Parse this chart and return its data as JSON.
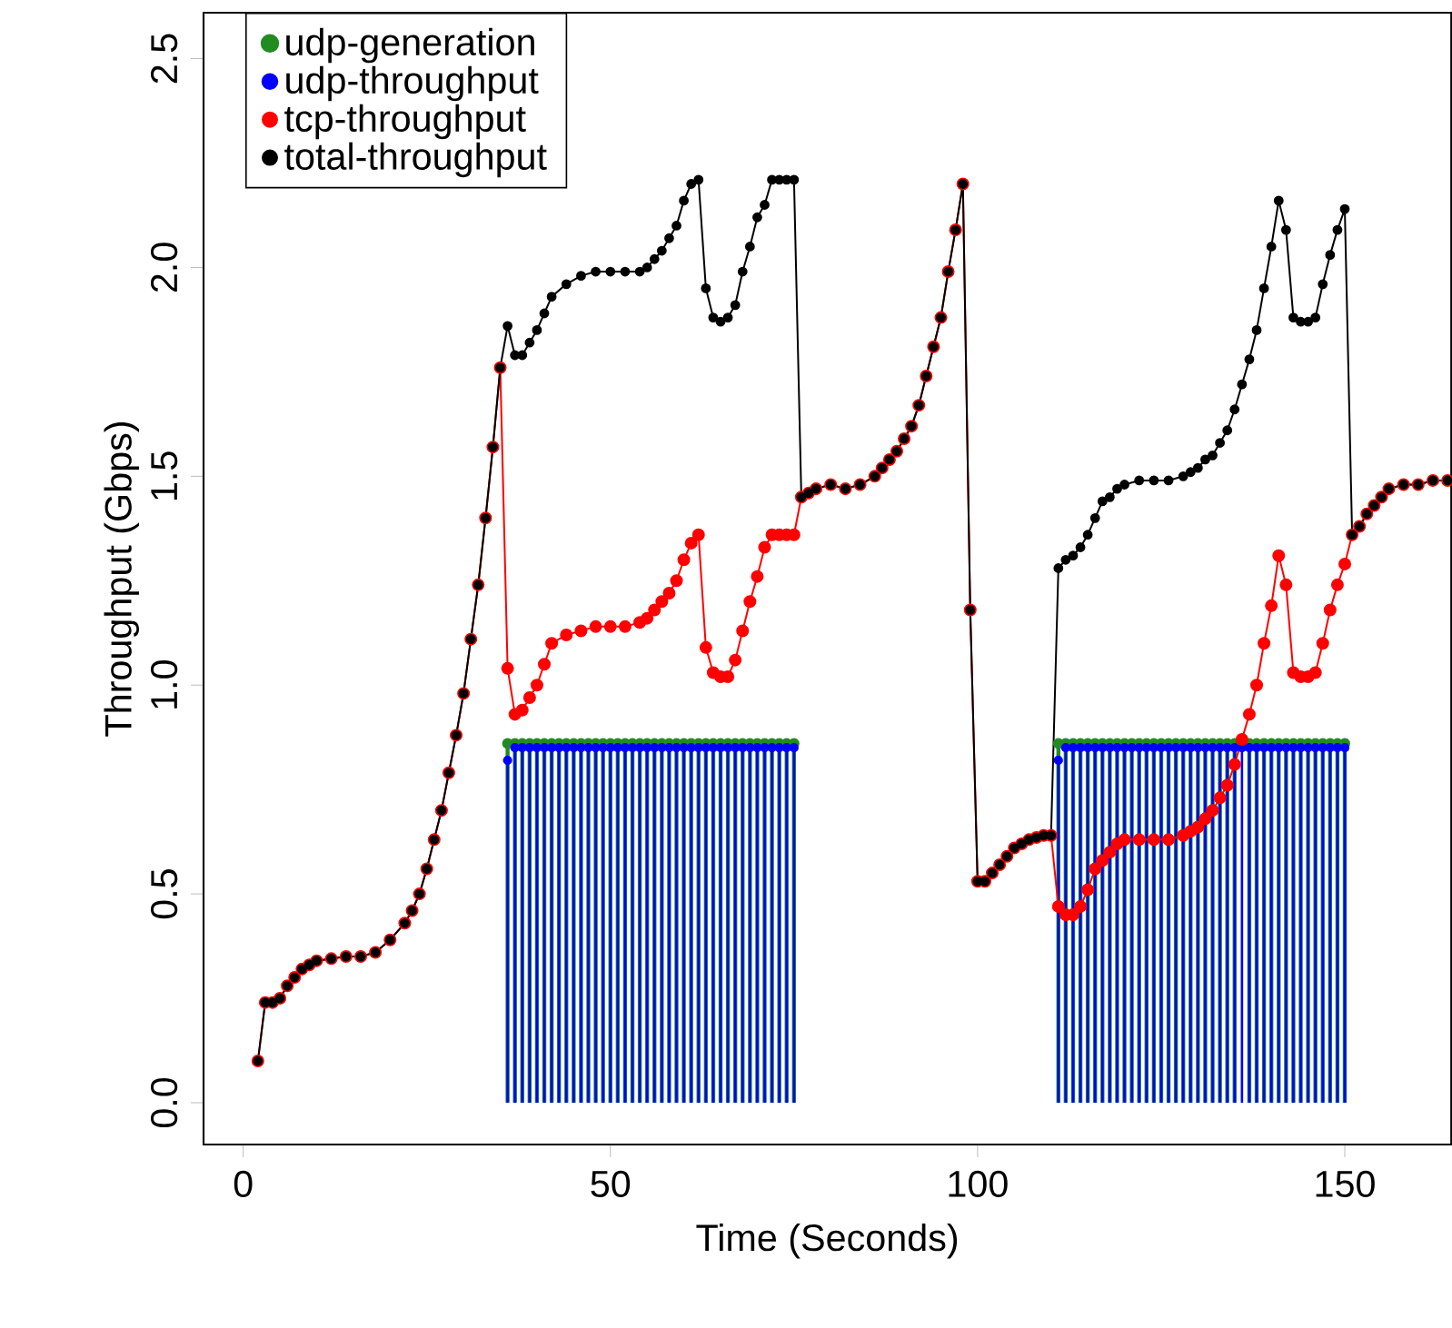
{
  "chart_data": {
    "type": "line",
    "xlabel": "Time (Seconds)",
    "ylabel": "Throughput (Gbps)",
    "xlim": [
      -5.4,
      164.5
    ],
    "ylim": [
      -0.1,
      2.61
    ],
    "xticks": [
      0,
      50,
      100,
      150
    ],
    "yticks": [
      {
        "value": 0,
        "label": "0.0"
      },
      0.5,
      {
        "value": 1,
        "label": "1.0"
      },
      1.5,
      {
        "value": 2,
        "label": "2.0"
      },
      2.5
    ],
    "legend": "top left",
    "marker": "circle",
    "grid": false,
    "series": [
      {
        "name": "udp-generation",
        "type": "lollipop",
        "color": "#228b22",
        "x": [
          36,
          37,
          38,
          39,
          40,
          41,
          42,
          43,
          44,
          45,
          46,
          47,
          48,
          49,
          50,
          51,
          52,
          53,
          54,
          55,
          56,
          57,
          58,
          59,
          60,
          61,
          62,
          63,
          64,
          65,
          66,
          67,
          68,
          69,
          70,
          71,
          72,
          73,
          74,
          75,
          111,
          112,
          113,
          114,
          115,
          116,
          117,
          118,
          119,
          120,
          121,
          122,
          123,
          124,
          125,
          126,
          127,
          128,
          129,
          130,
          131,
          132,
          133,
          134,
          135,
          136,
          137,
          138,
          139,
          140,
          141,
          142,
          143,
          144,
          145,
          146,
          147,
          148,
          149,
          150
        ],
        "values": [
          0.86,
          0.86,
          0.86,
          0.86,
          0.86,
          0.86,
          0.86,
          0.86,
          0.86,
          0.86,
          0.86,
          0.86,
          0.86,
          0.86,
          0.86,
          0.86,
          0.86,
          0.86,
          0.86,
          0.86,
          0.86,
          0.86,
          0.86,
          0.86,
          0.86,
          0.86,
          0.86,
          0.86,
          0.86,
          0.86,
          0.86,
          0.86,
          0.86,
          0.86,
          0.86,
          0.86,
          0.86,
          0.86,
          0.86,
          0.86,
          0.86,
          0.86,
          0.86,
          0.86,
          0.86,
          0.86,
          0.86,
          0.86,
          0.86,
          0.86,
          0.86,
          0.86,
          0.86,
          0.86,
          0.86,
          0.86,
          0.86,
          0.86,
          0.86,
          0.86,
          0.86,
          0.86,
          0.86,
          0.86,
          0.86,
          null,
          0.86,
          0.86,
          0.86,
          0.86,
          0.86,
          0.86,
          0.86,
          0.86,
          0.86,
          0.86,
          0.86,
          0.86,
          0.86,
          0.86
        ]
      },
      {
        "name": "udp-throughput",
        "type": "lollipop",
        "color": "#0000ff",
        "x": [
          36,
          37,
          38,
          39,
          40,
          41,
          42,
          43,
          44,
          45,
          46,
          47,
          48,
          49,
          50,
          51,
          52,
          53,
          54,
          55,
          56,
          57,
          58,
          59,
          60,
          61,
          62,
          63,
          64,
          65,
          66,
          67,
          68,
          69,
          70,
          71,
          72,
          73,
          74,
          75,
          111,
          112,
          113,
          114,
          115,
          116,
          117,
          118,
          119,
          120,
          121,
          122,
          123,
          124,
          125,
          126,
          127,
          128,
          129,
          130,
          131,
          132,
          133,
          134,
          135,
          136,
          137,
          138,
          139,
          140,
          141,
          142,
          143,
          144,
          145,
          146,
          147,
          148,
          149,
          150
        ],
        "values": [
          0.82,
          0.85,
          0.85,
          0.85,
          0.85,
          0.85,
          0.85,
          0.85,
          0.85,
          0.85,
          0.85,
          0.85,
          0.85,
          0.85,
          0.85,
          0.85,
          0.85,
          0.85,
          0.85,
          0.85,
          0.85,
          0.85,
          0.85,
          0.85,
          0.85,
          0.85,
          0.85,
          0.85,
          0.85,
          0.85,
          0.85,
          0.85,
          0.85,
          0.85,
          0.85,
          0.85,
          0.85,
          0.85,
          0.85,
          0.85,
          0.82,
          0.85,
          0.85,
          0.85,
          0.85,
          0.85,
          0.85,
          0.85,
          0.85,
          0.85,
          0.85,
          0.85,
          0.85,
          0.85,
          0.85,
          0.85,
          0.85,
          0.85,
          0.85,
          0.85,
          0.85,
          0.85,
          0.85,
          0.85,
          0.85,
          0.85,
          0.85,
          0.85,
          0.85,
          0.85,
          0.85,
          0.85,
          0.85,
          0.85,
          0.85,
          0.85,
          0.85,
          0.85,
          0.85,
          0.85
        ]
      },
      {
        "name": "tcp-throughput",
        "color": "#ff0000",
        "x": [
          2,
          3,
          4,
          5,
          6,
          7,
          8,
          9,
          10,
          12,
          14,
          16,
          18,
          20,
          22,
          23,
          24,
          25,
          26,
          27,
          28,
          29,
          30,
          31,
          32,
          33,
          34,
          35,
          36,
          37,
          38,
          39,
          40,
          41,
          42,
          44,
          46,
          48,
          50,
          52,
          54,
          55,
          56,
          57,
          58,
          59,
          60,
          61,
          62,
          63,
          64,
          65,
          66,
          67,
          68,
          69,
          70,
          71,
          72,
          73,
          74,
          75,
          76,
          77,
          78,
          80,
          82,
          84,
          86,
          87,
          88,
          89,
          90,
          91,
          92,
          93,
          94,
          95,
          96,
          97,
          98,
          99,
          100,
          101,
          102,
          103,
          104,
          105,
          106,
          107,
          108,
          109,
          110,
          111,
          112,
          113,
          114,
          115,
          116,
          117,
          118,
          119,
          120,
          122,
          124,
          126,
          128,
          129,
          130,
          131,
          132,
          133,
          134,
          135,
          136,
          137,
          138,
          139,
          140,
          141,
          142,
          143,
          144,
          145,
          146,
          147,
          148,
          149,
          150,
          151,
          152,
          153,
          154,
          155,
          156,
          158,
          160,
          162,
          164
        ],
        "values": [
          0.1,
          0.24,
          0.24,
          0.25,
          0.28,
          0.3,
          0.32,
          0.33,
          0.34,
          0.345,
          0.35,
          0.35,
          0.36,
          0.39,
          0.43,
          0.46,
          0.5,
          0.56,
          0.63,
          0.7,
          0.79,
          0.88,
          0.98,
          1.11,
          1.24,
          1.4,
          1.57,
          1.76,
          1.04,
          0.93,
          0.94,
          0.97,
          1.0,
          1.05,
          1.1,
          1.12,
          1.13,
          1.14,
          1.14,
          1.14,
          1.15,
          1.16,
          1.18,
          1.2,
          1.22,
          1.25,
          1.3,
          1.34,
          1.36,
          1.09,
          1.03,
          1.02,
          1.02,
          1.06,
          1.13,
          1.2,
          1.26,
          1.33,
          1.36,
          1.36,
          1.36,
          1.36,
          1.45,
          1.46,
          1.47,
          1.48,
          1.47,
          1.48,
          1.5,
          1.52,
          1.54,
          1.56,
          1.59,
          1.62,
          1.67,
          1.74,
          1.81,
          1.88,
          1.99,
          2.09,
          2.2,
          1.18,
          0.53,
          0.53,
          0.55,
          0.57,
          0.59,
          0.61,
          0.62,
          0.63,
          0.635,
          0.64,
          0.64,
          0.47,
          0.45,
          0.45,
          0.47,
          0.51,
          0.56,
          0.58,
          0.6,
          0.62,
          0.63,
          0.63,
          0.63,
          0.63,
          0.64,
          0.65,
          0.66,
          0.68,
          0.7,
          0.73,
          0.76,
          0.81,
          0.87,
          0.93,
          1.0,
          1.1,
          1.19,
          1.31,
          1.24,
          1.03,
          1.02,
          1.02,
          1.03,
          1.1,
          1.18,
          1.24,
          1.29,
          1.36,
          1.38,
          1.41,
          1.43,
          1.45,
          1.47,
          1.48,
          1.48,
          1.49,
          1.49
        ]
      },
      {
        "name": "total-throughput",
        "color": "#000000",
        "x": [
          2,
          3,
          4,
          5,
          6,
          7,
          8,
          9,
          10,
          12,
          14,
          16,
          18,
          20,
          22,
          23,
          24,
          25,
          26,
          27,
          28,
          29,
          30,
          31,
          32,
          33,
          34,
          35,
          36,
          37,
          38,
          39,
          40,
          41,
          42,
          44,
          46,
          48,
          50,
          52,
          54,
          55,
          56,
          57,
          58,
          59,
          60,
          61,
          62,
          63,
          64,
          65,
          66,
          67,
          68,
          69,
          70,
          71,
          72,
          73,
          74,
          75,
          76,
          77,
          78,
          80,
          82,
          84,
          86,
          87,
          88,
          89,
          90,
          91,
          92,
          93,
          94,
          95,
          96,
          97,
          98,
          99,
          100,
          101,
          102,
          103,
          104,
          105,
          106,
          107,
          108,
          109,
          110,
          111,
          112,
          113,
          114,
          115,
          116,
          117,
          118,
          119,
          120,
          122,
          124,
          126,
          128,
          129,
          130,
          131,
          132,
          133,
          134,
          135,
          136,
          137,
          138,
          139,
          140,
          141,
          142,
          143,
          144,
          145,
          146,
          147,
          148,
          149,
          150,
          151,
          152,
          153,
          154,
          155,
          156,
          158,
          160,
          162,
          164
        ],
        "values": [
          0.1,
          0.24,
          0.24,
          0.25,
          0.28,
          0.3,
          0.32,
          0.33,
          0.34,
          0.345,
          0.35,
          0.35,
          0.36,
          0.39,
          0.43,
          0.46,
          0.5,
          0.56,
          0.63,
          0.7,
          0.79,
          0.88,
          0.98,
          1.11,
          1.24,
          1.4,
          1.57,
          1.76,
          1.86,
          1.79,
          1.79,
          1.82,
          1.85,
          1.89,
          1.93,
          1.96,
          1.98,
          1.99,
          1.99,
          1.99,
          1.99,
          2.0,
          2.02,
          2.04,
          2.07,
          2.1,
          2.16,
          2.2,
          2.21,
          1.95,
          1.88,
          1.87,
          1.88,
          1.91,
          1.99,
          2.05,
          2.12,
          2.15,
          2.21,
          2.21,
          2.21,
          2.21,
          1.45,
          1.46,
          1.47,
          1.48,
          1.47,
          1.48,
          1.5,
          1.52,
          1.54,
          1.56,
          1.59,
          1.62,
          1.67,
          1.74,
          1.81,
          1.88,
          1.99,
          2.09,
          2.2,
          1.18,
          0.53,
          0.53,
          0.55,
          0.57,
          0.59,
          0.61,
          0.62,
          0.63,
          0.635,
          0.64,
          0.64,
          1.28,
          1.3,
          1.31,
          1.33,
          1.36,
          1.4,
          1.44,
          1.45,
          1.47,
          1.48,
          1.49,
          1.49,
          1.49,
          1.5,
          1.51,
          1.52,
          1.54,
          1.55,
          1.58,
          1.61,
          1.66,
          1.72,
          1.78,
          1.85,
          1.95,
          2.05,
          2.16,
          2.09,
          1.88,
          1.87,
          1.87,
          1.88,
          1.96,
          2.03,
          2.09,
          2.14,
          1.36,
          1.38,
          1.41,
          1.43,
          1.45,
          1.47,
          1.48,
          1.48,
          1.49,
          1.49
        ]
      }
    ]
  }
}
